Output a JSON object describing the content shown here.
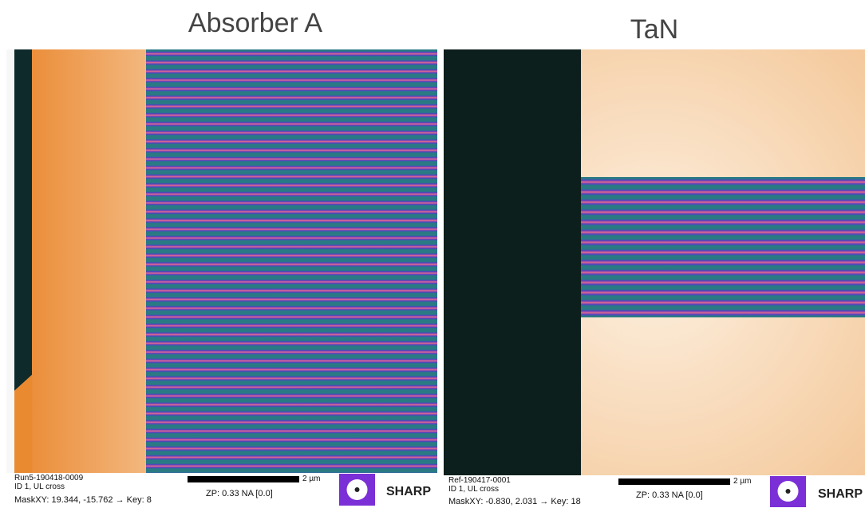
{
  "panels": [
    {
      "title": "Absorber A",
      "info": [
        "Run5-190418-0009",
        "ID 1, UL cross",
        "MaskXY: 19.344, -15.762 → Key: 8"
      ],
      "scale": "2 µm",
      "zp": "ZP: 0.33 NA [0.0]",
      "logo": "SHARP"
    },
    {
      "title": "TaN",
      "info": [
        "Ref-190417-0001",
        "ID 1, UL cross",
        "MaskXY: -0.830, 2.031 → Key: 18"
      ],
      "scale": "2 µm",
      "zp": "ZP: 0.33 NA [0.0]",
      "logo": "SHARP"
    }
  ]
}
